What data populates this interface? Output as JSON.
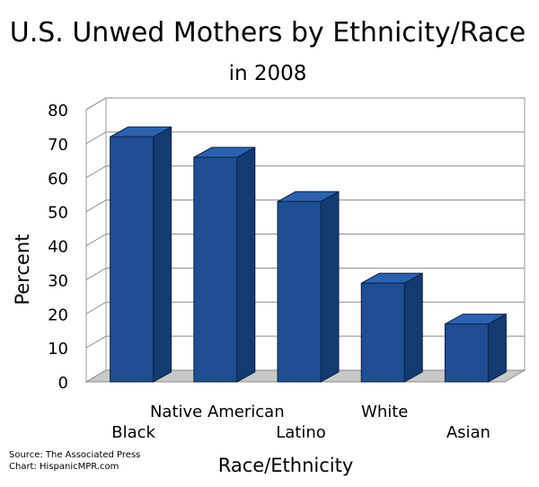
{
  "chart_data": {
    "type": "bar",
    "title": "U.S. Unwed Mothers by Ethnicity/Race",
    "subtitle": "in 2008",
    "xlabel": "Race/Ethnicity",
    "ylabel": "Percent",
    "categories": [
      "Black",
      "Native American",
      "Latino",
      "White",
      "Asian"
    ],
    "values": [
      72,
      66,
      53,
      29,
      17
    ],
    "ylim": [
      0,
      80
    ],
    "yticks": [
      0,
      10,
      20,
      30,
      40,
      50,
      60,
      70,
      80
    ],
    "grid": true,
    "style": "3d",
    "bar_color": "#1e4d91",
    "bar_side_color": "#143a72",
    "bar_top_color": "#2a62b0",
    "source_lines": [
      "Source: The Associated Press",
      "Chart: HispanicMPR.com"
    ]
  }
}
